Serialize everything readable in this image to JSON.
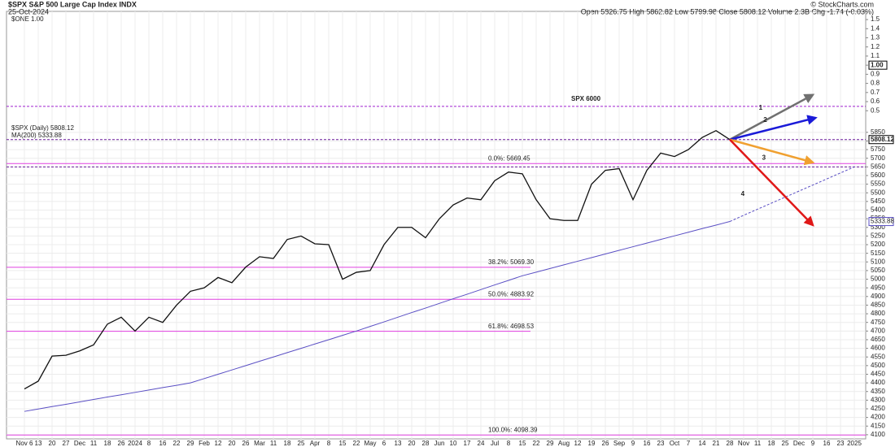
{
  "header": {
    "title": "$SPX S&P 500 Large Cap Index INDX",
    "date": "25-Oct-2024",
    "quote": "Open 5826.75 High 5862.82 Low 5799.98 Close 5808.12 Volume 2.3B Chg -1.74 (-0.03%)",
    "credit": "© StockCharts.com",
    "overlay_legend": "$ONE 1.00"
  },
  "chart_data": {
    "type": "line",
    "categories": [
      "Nov 6",
      "13",
      "20",
      "27",
      "Dec",
      "11",
      "18",
      "26",
      "2024",
      "8",
      "16",
      "22",
      "29",
      "Feb",
      "12",
      "20",
      "26",
      "Mar",
      "11",
      "18",
      "25",
      "Apr",
      "8",
      "15",
      "22",
      "May",
      "6",
      "13",
      "20",
      "28",
      "Jun",
      "10",
      "17",
      "24",
      "Jul",
      "8",
      "15",
      "22",
      "29",
      "Aug",
      "12",
      "19",
      "26",
      "Sep",
      "9",
      "16",
      "23",
      "Oct",
      "7",
      "14",
      "21",
      "28",
      "Nov",
      "11",
      "18",
      "25",
      "Dec",
      "9",
      "16",
      "23",
      "2025"
    ],
    "series": [
      {
        "name": "$SPX (Daily) 5808.12",
        "color": "#111111",
        "values": [
          4365,
          4410,
          4555,
          4560,
          4585,
          4620,
          4740,
          4780,
          4700,
          4780,
          4750,
          4850,
          4930,
          4950,
          5010,
          4980,
          5070,
          5130,
          5120,
          5230,
          5250,
          5205,
          5200,
          5000,
          5040,
          5050,
          5200,
          5300,
          5300,
          5240,
          5350,
          5430,
          5470,
          5460,
          5570,
          5620,
          5610,
          5460,
          5350,
          5340,
          5340,
          5550,
          5630,
          5640,
          5460,
          5630,
          5730,
          5710,
          5750,
          5820,
          5860,
          5808,
          null,
          null,
          null,
          null,
          null,
          null,
          null,
          null,
          null
        ]
      },
      {
        "name": "MA(200) 5333.88",
        "color": "#5a4fc4",
        "values": [
          4235,
          4249,
          4263,
          4276,
          4290,
          4304,
          4318,
          4331,
          4345,
          4359,
          4373,
          4386,
          4400,
          4425,
          4450,
          4475,
          4500,
          4525,
          4550,
          4575,
          4600,
          4625,
          4650,
          4675,
          4700,
          4727,
          4753,
          4780,
          4807,
          4833,
          4860,
          4887,
          4913,
          4940,
          4967,
          4993,
          5020,
          5041,
          5062,
          5083,
          5104,
          5125,
          5146,
          5167,
          5188,
          5209,
          5230,
          5251,
          5272,
          5293,
          5313,
          5334,
          null,
          null,
          null,
          null,
          null,
          null,
          null,
          null,
          null
        ]
      },
      {
        "color": "#5a4fc4",
        "dashed": true,
        "values": [
          null,
          null,
          null,
          null,
          null,
          null,
          null,
          null,
          null,
          null,
          null,
          null,
          null,
          null,
          null,
          null,
          null,
          null,
          null,
          null,
          null,
          null,
          null,
          null,
          null,
          null,
          null,
          null,
          null,
          null,
          null,
          null,
          null,
          null,
          null,
          null,
          null,
          null,
          null,
          null,
          null,
          null,
          null,
          null,
          null,
          null,
          null,
          null,
          null,
          null,
          null,
          5334,
          5370,
          5405,
          5440,
          5475,
          5510,
          5545,
          5580,
          5615,
          5650
        ]
      }
    ],
    "ylim": [
      4076,
      6550
    ],
    "yticks": [
      4100,
      4150,
      4200,
      4250,
      4300,
      4350,
      4400,
      4450,
      4500,
      4550,
      4600,
      4650,
      4700,
      4750,
      4800,
      4850,
      4900,
      4950,
      5000,
      5050,
      5100,
      5150,
      5200,
      5250,
      5300,
      5350,
      5400,
      5450,
      5500,
      5550,
      5600,
      5650,
      5700,
      5750,
      5800,
      5850
    ],
    "y2lim": [
      -3.1,
      1.59
    ],
    "y2ticks": [
      0.5,
      0.6,
      0.7,
      0.8,
      0.9,
      {
        "value": 1,
        "label": "1.00"
      },
      1.1,
      1.2,
      1.3,
      1.4,
      1.5
    ],
    "grid": true,
    "badges": [
      5808.12,
      5333.88
    ],
    "hlines": [
      {
        "value": 6000,
        "label": "SPX 6000",
        "color": "#a020d0"
      },
      {
        "value": 5808.12,
        "color": "#6a1a9a"
      },
      {
        "value": 5650,
        "color": "#6a1a9a"
      }
    ],
    "fib_levels": [
      {
        "label": "0.0%: 5669.45",
        "value": 5669.45
      },
      {
        "label": "38.2%: 5069.30",
        "value": 5069.3
      },
      {
        "label": "50.0%: 4883.92",
        "value": 4883.92
      },
      {
        "label": "61.8%: 4698.53",
        "value": 4698.53
      },
      {
        "label": "100.0%: 4098.39",
        "value": 4098.39
      }
    ],
    "fib_color": "#e040e0",
    "arrows": [
      {
        "label": "1",
        "color": "#707070",
        "from": [
          51,
          5808
        ],
        "to": [
          57,
          6067
        ]
      },
      {
        "label": "2",
        "color": "#1a1ad8",
        "from": [
          51,
          5808
        ],
        "to": [
          57.2,
          5934
        ]
      },
      {
        "label": "3",
        "color": "#f0a030",
        "from": [
          51,
          5808
        ],
        "to": [
          57,
          5676
        ]
      },
      {
        "label": "4",
        "color": "#e01818",
        "from": [
          51,
          5808
        ],
        "to": [
          57,
          5313
        ]
      }
    ]
  }
}
